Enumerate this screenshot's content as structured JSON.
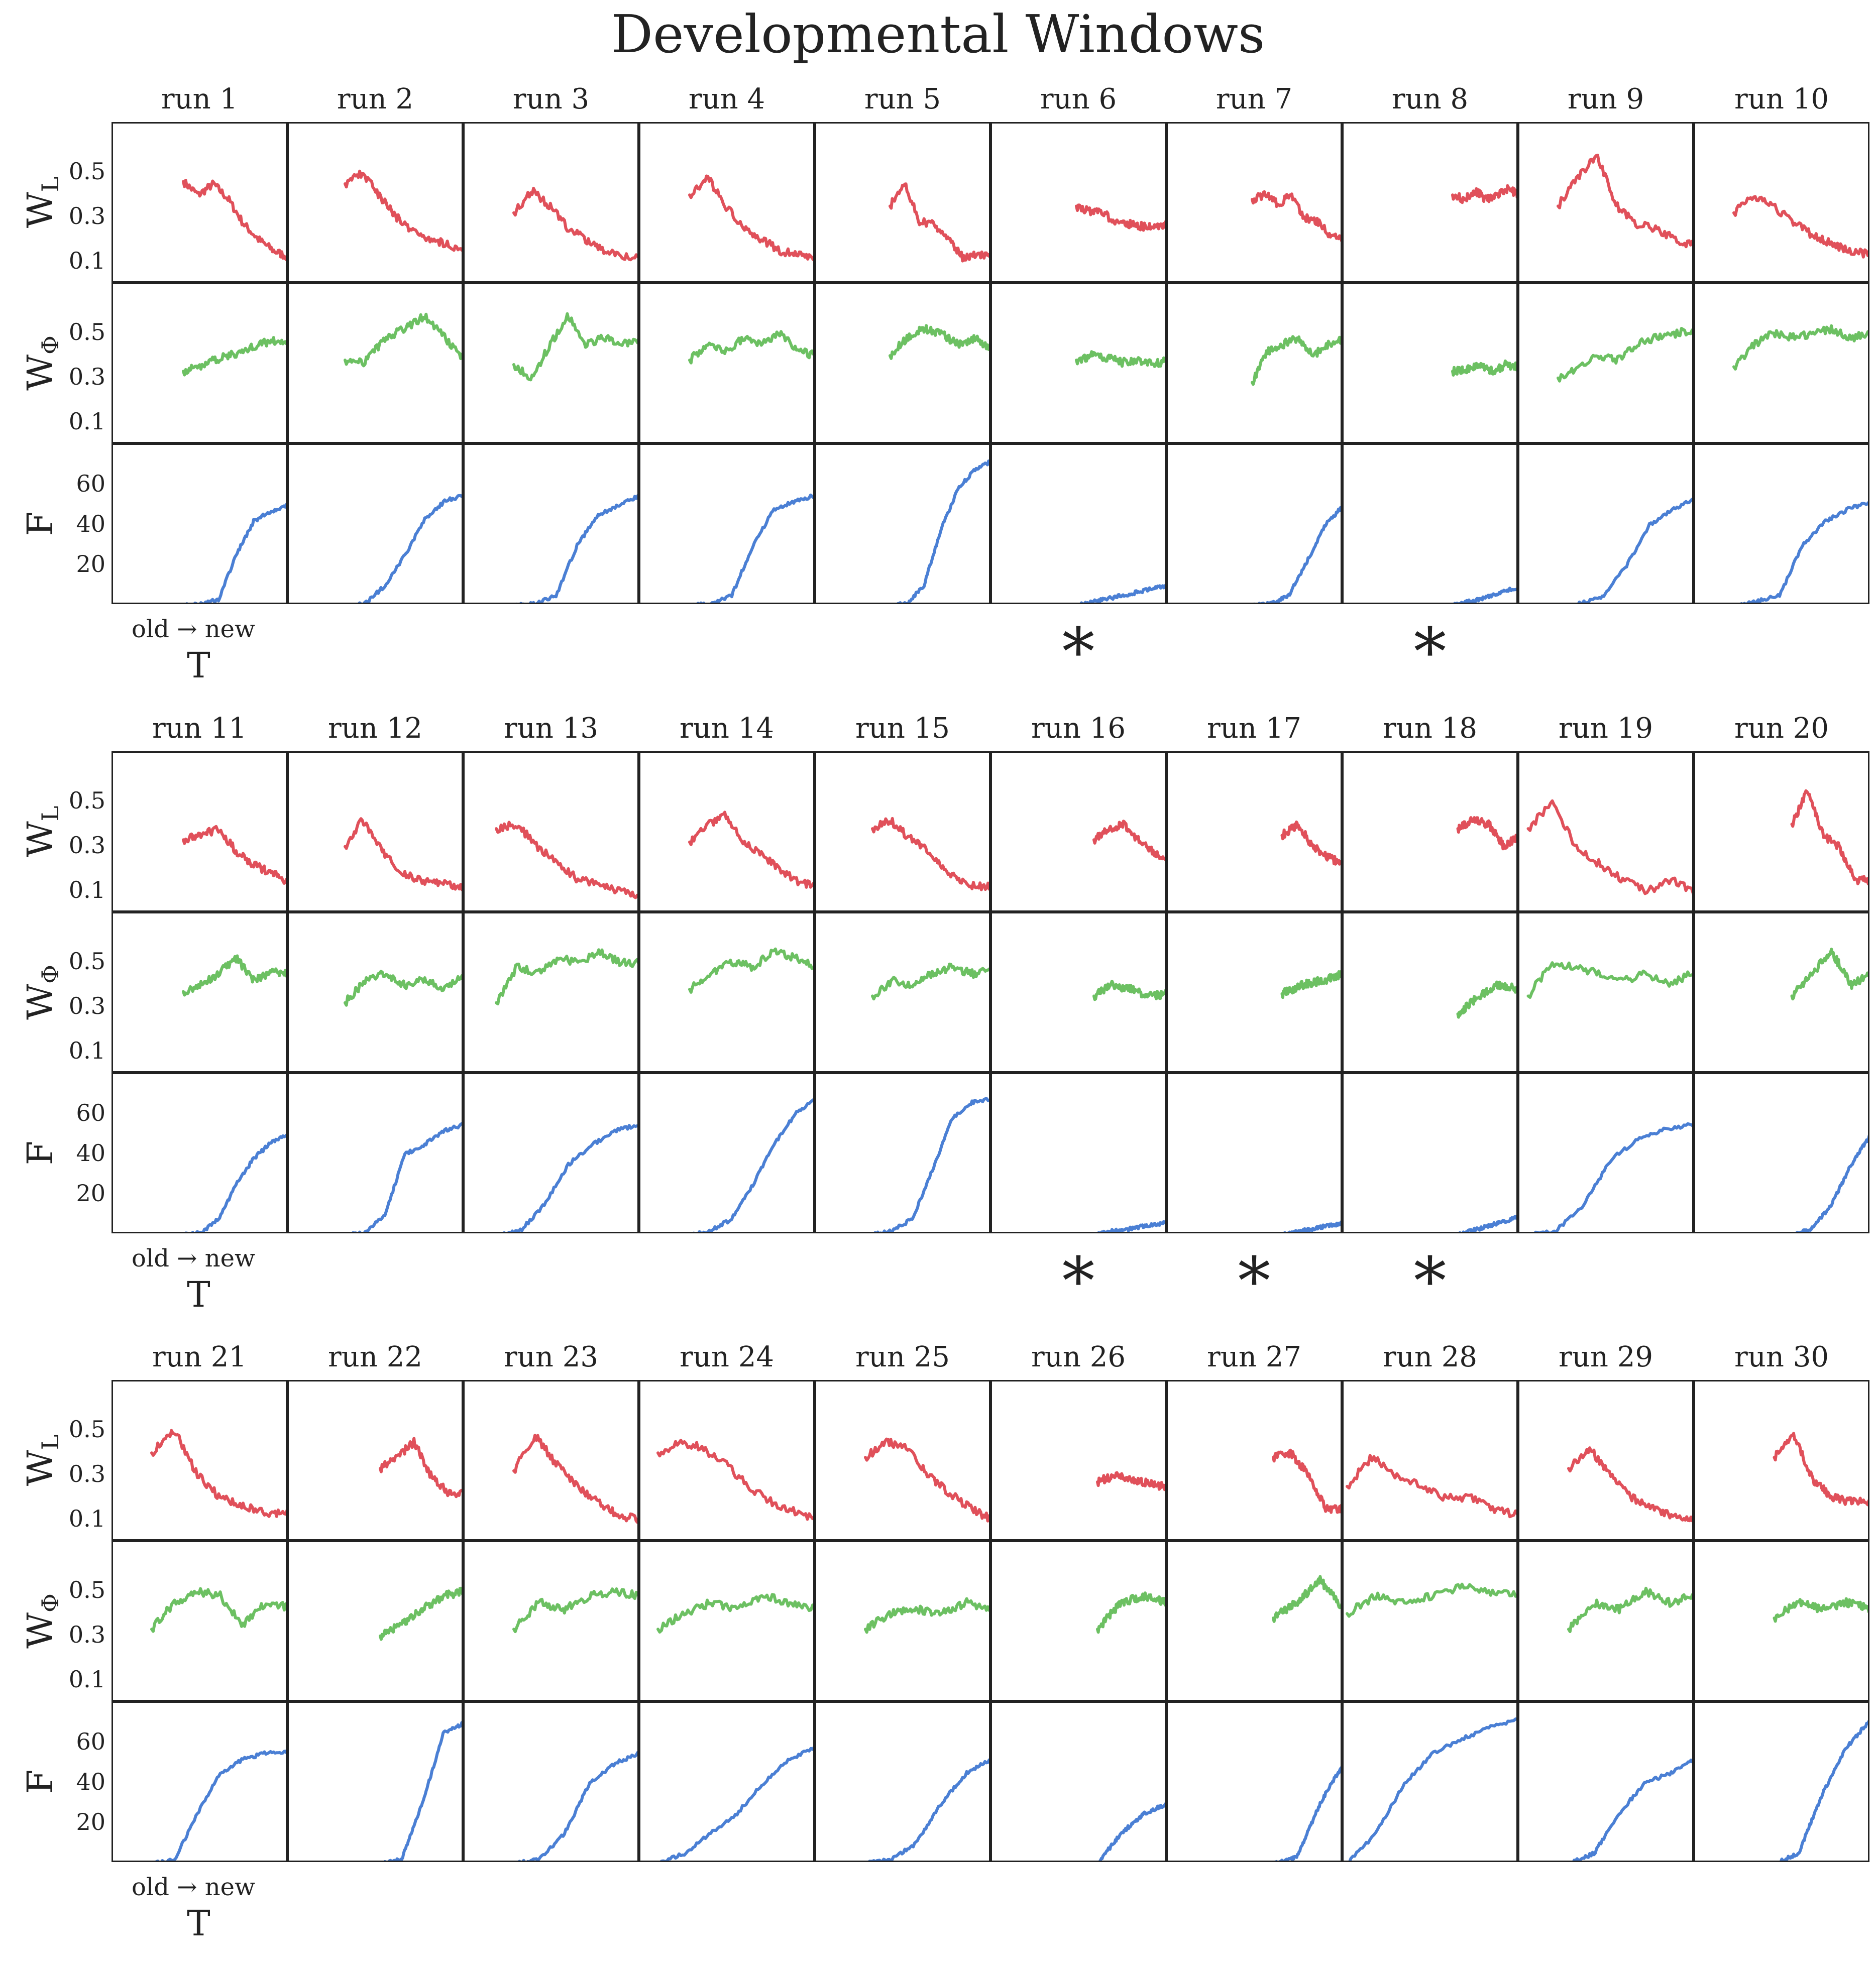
{
  "chart_data": {
    "type": "line",
    "title": "Developmental Windows",
    "x_axis": {
      "hint": "old → new",
      "label": "T"
    },
    "rows": [
      {
        "key": "WL",
        "label": "W",
        "sub": "L",
        "color": "#e0505a",
        "ylim": [
          0.0,
          0.72
        ],
        "yticks": [
          "0.5",
          "0.3",
          "0.1"
        ]
      },
      {
        "key": "WPhi",
        "label": "W",
        "sub": "Φ",
        "color": "#6cc062",
        "ylim": [
          0.0,
          0.72
        ],
        "yticks": [
          "0.5",
          "0.3",
          "0.1"
        ]
      },
      {
        "key": "F",
        "label": "F",
        "sub": "",
        "color": "#4a7fd4",
        "ylim": [
          0,
          80
        ],
        "yticks": [
          "60",
          "40",
          "20"
        ]
      }
    ],
    "runs": [
      {
        "name": "run 1",
        "starred": false,
        "WL": {
          "x0": 0.4,
          "y": [
            0.46,
            0.4,
            0.45,
            0.38,
            0.27,
            0.2,
            0.15,
            0.12
          ]
        },
        "WPhi": {
          "x0": 0.4,
          "y": [
            0.33,
            0.35,
            0.38,
            0.4,
            0.42,
            0.45,
            0.47,
            0.45
          ]
        },
        "F": {
          "x0": 0.4,
          "y": [
            0,
            1,
            3,
            25,
            42,
            47,
            50
          ]
        }
      },
      {
        "name": "run 2",
        "starred": false,
        "WL": {
          "x0": 0.32,
          "y": [
            0.45,
            0.5,
            0.4,
            0.3,
            0.24,
            0.2,
            0.18,
            0.15
          ]
        },
        "WPhi": {
          "x0": 0.32,
          "y": [
            0.38,
            0.37,
            0.48,
            0.52,
            0.58,
            0.48,
            0.38
          ]
        },
        "F": {
          "x0": 0.32,
          "y": [
            0,
            1,
            10,
            25,
            43,
            52,
            55
          ]
        }
      },
      {
        "name": "run 3",
        "starred": false,
        "WL": {
          "x0": 0.28,
          "y": [
            0.32,
            0.42,
            0.35,
            0.25,
            0.2,
            0.15,
            0.13,
            0.11
          ]
        },
        "WPhi": {
          "x0": 0.28,
          "y": [
            0.36,
            0.3,
            0.45,
            0.58,
            0.45,
            0.48,
            0.45,
            0.47
          ]
        },
        "F": {
          "x0": 0.28,
          "y": [
            0,
            1,
            5,
            30,
            45,
            50,
            55
          ]
        }
      },
      {
        "name": "run 4",
        "starred": false,
        "WL": {
          "x0": 0.28,
          "y": [
            0.4,
            0.48,
            0.35,
            0.25,
            0.2,
            0.15,
            0.13,
            0.12
          ]
        },
        "WPhi": {
          "x0": 0.28,
          "y": [
            0.38,
            0.45,
            0.42,
            0.48,
            0.45,
            0.5,
            0.42,
            0.4
          ]
        },
        "F": {
          "x0": 0.28,
          "y": [
            0,
            1,
            5,
            30,
            48,
            52,
            55
          ]
        }
      },
      {
        "name": "run 5",
        "starred": false,
        "WL": {
          "x0": 0.42,
          "y": [
            0.35,
            0.46,
            0.28,
            0.27,
            0.2,
            0.12,
            0.13,
            0.12
          ]
        },
        "WPhi": {
          "x0": 0.42,
          "y": [
            0.4,
            0.48,
            0.52,
            0.5,
            0.45,
            0.48,
            0.42
          ]
        },
        "F": {
          "x0": 0.42,
          "y": [
            0,
            1,
            10,
            38,
            58,
            68,
            72
          ]
        }
      },
      {
        "name": "run 6",
        "starred": true,
        "WL": {
          "x0": 0.48,
          "y": [
            0.35,
            0.33,
            0.32,
            0.28,
            0.27,
            0.26,
            0.25,
            0.27
          ]
        },
        "WPhi": {
          "x0": 0.48,
          "y": [
            0.38,
            0.4,
            0.39,
            0.37,
            0.38,
            0.36,
            0.38
          ]
        },
        "F": {
          "x0": 0.48,
          "y": [
            0,
            2,
            4,
            6,
            8,
            10
          ]
        }
      },
      {
        "name": "run 7",
        "starred": false,
        "WL": {
          "x0": 0.48,
          "y": [
            0.38,
            0.4,
            0.36,
            0.4,
            0.3,
            0.28,
            0.22,
            0.2
          ]
        },
        "WPhi": {
          "x0": 0.48,
          "y": [
            0.28,
            0.42,
            0.45,
            0.48,
            0.4,
            0.45,
            0.47
          ]
        },
        "F": {
          "x0": 0.48,
          "y": [
            0,
            1,
            5,
            22,
            40,
            50
          ]
        }
      },
      {
        "name": "run 8",
        "starred": true,
        "WL": {
          "x0": 0.62,
          "y": [
            0.4,
            0.38,
            0.42,
            0.38,
            0.4,
            0.43,
            0.4
          ]
        },
        "WPhi": {
          "x0": 0.62,
          "y": [
            0.33,
            0.34,
            0.36,
            0.33,
            0.36,
            0.35
          ]
        },
        "F": {
          "x0": 0.62,
          "y": [
            0,
            2,
            4,
            7,
            9
          ]
        }
      },
      {
        "name": "run 9",
        "starred": false,
        "WL": {
          "x0": 0.22,
          "y": [
            0.35,
            0.48,
            0.58,
            0.35,
            0.27,
            0.25,
            0.2,
            0.17
          ]
        },
        "WPhi": {
          "x0": 0.22,
          "y": [
            0.3,
            0.35,
            0.4,
            0.38,
            0.45,
            0.48,
            0.5,
            0.52
          ]
        },
        "F": {
          "x0": 0.22,
          "y": [
            0,
            1,
            5,
            20,
            40,
            48,
            53
          ]
        }
      },
      {
        "name": "run 10",
        "starred": false,
        "WL": {
          "x0": 0.22,
          "y": [
            0.32,
            0.4,
            0.35,
            0.28,
            0.22,
            0.18,
            0.15,
            0.13
          ]
        },
        "WPhi": {
          "x0": 0.22,
          "y": [
            0.35,
            0.45,
            0.5,
            0.48,
            0.5,
            0.52,
            0.48,
            0.5
          ]
        },
        "F": {
          "x0": 0.22,
          "y": [
            0,
            2,
            5,
            30,
            42,
            48,
            52
          ]
        }
      },
      {
        "name": "run 11",
        "starred": false,
        "WL": {
          "x0": 0.4,
          "y": [
            0.33,
            0.35,
            0.38,
            0.28,
            0.22,
            0.18,
            0.14
          ]
        },
        "WPhi": {
          "x0": 0.4,
          "y": [
            0.37,
            0.4,
            0.45,
            0.52,
            0.42,
            0.46,
            0.45
          ]
        },
        "F": {
          "x0": 0.4,
          "y": [
            0,
            1,
            8,
            25,
            38,
            46,
            50
          ]
        }
      },
      {
        "name": "run 12",
        "starred": false,
        "WL": {
          "x0": 0.32,
          "y": [
            0.3,
            0.42,
            0.3,
            0.2,
            0.16,
            0.14,
            0.13,
            0.12
          ]
        },
        "WPhi": {
          "x0": 0.32,
          "y": [
            0.32,
            0.42,
            0.45,
            0.4,
            0.42,
            0.38,
            0.45
          ]
        },
        "F": {
          "x0": 0.32,
          "y": [
            0,
            1,
            10,
            40,
            45,
            52,
            55
          ]
        }
      },
      {
        "name": "run 13",
        "starred": false,
        "WL": {
          "x0": 0.18,
          "y": [
            0.38,
            0.4,
            0.3,
            0.22,
            0.15,
            0.13,
            0.1,
            0.08
          ]
        },
        "WPhi": {
          "x0": 0.18,
          "y": [
            0.32,
            0.48,
            0.45,
            0.52,
            0.5,
            0.55,
            0.5,
            0.5
          ]
        },
        "F": {
          "x0": 0.18,
          "y": [
            0,
            2,
            15,
            35,
            45,
            52,
            55
          ]
        }
      },
      {
        "name": "run 14",
        "starred": false,
        "WL": {
          "x0": 0.28,
          "y": [
            0.32,
            0.4,
            0.44,
            0.32,
            0.26,
            0.2,
            0.14,
            0.12
          ]
        },
        "WPhi": {
          "x0": 0.28,
          "y": [
            0.38,
            0.45,
            0.5,
            0.48,
            0.55,
            0.52,
            0.48
          ]
        },
        "F": {
          "x0": 0.28,
          "y": [
            0,
            2,
            8,
            25,
            45,
            60,
            68
          ]
        }
      },
      {
        "name": "run 15",
        "starred": false,
        "WL": {
          "x0": 0.32,
          "y": [
            0.38,
            0.42,
            0.35,
            0.3,
            0.22,
            0.15,
            0.12,
            0.12
          ]
        },
        "WPhi": {
          "x0": 0.32,
          "y": [
            0.35,
            0.42,
            0.4,
            0.45,
            0.48,
            0.45,
            0.47
          ]
        },
        "F": {
          "x0": 0.32,
          "y": [
            0,
            2,
            8,
            32,
            58,
            66,
            68
          ]
        }
      },
      {
        "name": "run 16",
        "starred": true,
        "WL": {
          "x0": 0.58,
          "y": [
            0.33,
            0.38,
            0.4,
            0.33,
            0.28,
            0.24
          ]
        },
        "WPhi": {
          "x0": 0.58,
          "y": [
            0.35,
            0.4,
            0.38,
            0.35,
            0.36
          ]
        },
        "F": {
          "x0": 0.58,
          "y": [
            0,
            2,
            3,
            5,
            6
          ]
        }
      },
      {
        "name": "run 17",
        "starred": true,
        "WL": {
          "x0": 0.65,
          "y": [
            0.35,
            0.4,
            0.3,
            0.25,
            0.22
          ]
        },
        "WPhi": {
          "x0": 0.65,
          "y": [
            0.36,
            0.4,
            0.42,
            0.45
          ]
        },
        "F": {
          "x0": 0.65,
          "y": [
            0,
            2,
            4,
            6
          ]
        }
      },
      {
        "name": "run 18",
        "starred": true,
        "WL": {
          "x0": 0.65,
          "y": [
            0.38,
            0.42,
            0.4,
            0.3,
            0.35
          ]
        },
        "WPhi": {
          "x0": 0.65,
          "y": [
            0.27,
            0.35,
            0.4,
            0.38
          ]
        },
        "F": {
          "x0": 0.65,
          "y": [
            0,
            3,
            6,
            9
          ]
        }
      },
      {
        "name": "run 19",
        "starred": false,
        "WL": {
          "x0": 0.05,
          "y": [
            0.38,
            0.5,
            0.3,
            0.22,
            0.15,
            0.1,
            0.15,
            0.1
          ]
        },
        "WPhi": {
          "x0": 0.05,
          "y": [
            0.35,
            0.5,
            0.48,
            0.45,
            0.42,
            0.45,
            0.4,
            0.47
          ]
        },
        "F": {
          "x0": 0.05,
          "y": [
            0,
            2,
            15,
            38,
            48,
            53,
            55
          ]
        }
      },
      {
        "name": "run 20",
        "starred": false,
        "WL": {
          "x0": 0.55,
          "y": [
            0.4,
            0.55,
            0.35,
            0.3,
            0.15,
            0.15
          ]
        },
        "WPhi": {
          "x0": 0.55,
          "y": [
            0.35,
            0.45,
            0.55,
            0.4,
            0.45
          ]
        },
        "F": {
          "x0": 0.55,
          "y": [
            0,
            3,
            15,
            35,
            50
          ]
        }
      },
      {
        "name": "run 21",
        "starred": false,
        "WL": {
          "x0": 0.22,
          "y": [
            0.4,
            0.5,
            0.3,
            0.2,
            0.16,
            0.13,
            0.13
          ]
        },
        "WPhi": {
          "x0": 0.22,
          "y": [
            0.33,
            0.45,
            0.5,
            0.48,
            0.35,
            0.45,
            0.43
          ]
        },
        "F": {
          "x0": 0.22,
          "y": [
            0,
            2,
            25,
            45,
            52,
            55,
            56
          ]
        }
      },
      {
        "name": "run 22",
        "starred": false,
        "WL": {
          "x0": 0.52,
          "y": [
            0.33,
            0.38,
            0.45,
            0.3,
            0.22,
            0.22
          ]
        },
        "WPhi": {
          "x0": 0.52,
          "y": [
            0.3,
            0.35,
            0.42,
            0.48,
            0.5
          ]
        },
        "F": {
          "x0": 0.52,
          "y": [
            0,
            2,
            30,
            65,
            70
          ]
        }
      },
      {
        "name": "run 23",
        "starred": false,
        "WL": {
          "x0": 0.28,
          "y": [
            0.32,
            0.48,
            0.35,
            0.25,
            0.18,
            0.12,
            0.1
          ]
        },
        "WPhi": {
          "x0": 0.28,
          "y": [
            0.33,
            0.45,
            0.42,
            0.48,
            0.5,
            0.48
          ]
        },
        "F": {
          "x0": 0.28,
          "y": [
            0,
            2,
            15,
            40,
            50,
            55
          ]
        }
      },
      {
        "name": "run 24",
        "starred": false,
        "WL": {
          "x0": 0.1,
          "y": [
            0.4,
            0.45,
            0.42,
            0.35,
            0.25,
            0.18,
            0.14,
            0.1
          ]
        },
        "WPhi": {
          "x0": 0.1,
          "y": [
            0.33,
            0.4,
            0.45,
            0.42,
            0.48,
            0.45,
            0.42
          ]
        },
        "F": {
          "x0": 0.1,
          "y": [
            0,
            5,
            15,
            25,
            40,
            52,
            58
          ]
        }
      },
      {
        "name": "run 25",
        "starred": false,
        "WL": {
          "x0": 0.28,
          "y": [
            0.38,
            0.45,
            0.42,
            0.3,
            0.22,
            0.15,
            0.1
          ]
        },
        "WPhi": {
          "x0": 0.28,
          "y": [
            0.33,
            0.4,
            0.42,
            0.4,
            0.45,
            0.42
          ]
        },
        "F": {
          "x0": 0.28,
          "y": [
            0,
            2,
            10,
            30,
            45,
            52
          ]
        }
      },
      {
        "name": "run 26",
        "starred": false,
        "WL": {
          "x0": 0.6,
          "y": [
            0.27,
            0.3,
            0.28,
            0.26,
            0.25
          ]
        },
        "WPhi": {
          "x0": 0.6,
          "y": [
            0.33,
            0.45,
            0.48,
            0.45
          ]
        },
        "F": {
          "x0": 0.6,
          "y": [
            0,
            15,
            25,
            30
          ]
        }
      },
      {
        "name": "run 27",
        "starred": false,
        "WL": {
          "x0": 0.6,
          "y": [
            0.38,
            0.4,
            0.3,
            0.15,
            0.15
          ]
        },
        "WPhi": {
          "x0": 0.6,
          "y": [
            0.38,
            0.45,
            0.55,
            0.42
          ]
        },
        "F": {
          "x0": 0.6,
          "y": [
            0,
            3,
            30,
            50
          ]
        }
      },
      {
        "name": "run 28",
        "starred": false,
        "WL": {
          "x0": 0.02,
          "y": [
            0.25,
            0.38,
            0.3,
            0.25,
            0.2,
            0.2,
            0.15,
            0.12
          ]
        },
        "WPhi": {
          "x0": 0.02,
          "y": [
            0.4,
            0.48,
            0.45,
            0.48,
            0.52,
            0.5,
            0.48
          ]
        },
        "F": {
          "x0": 0.02,
          "y": [
            0,
            15,
            40,
            55,
            62,
            68,
            72
          ]
        }
      },
      {
        "name": "run 29",
        "starred": false,
        "WL": {
          "x0": 0.28,
          "y": [
            0.33,
            0.42,
            0.3,
            0.2,
            0.15,
            0.12,
            0.1
          ]
        },
        "WPhi": {
          "x0": 0.28,
          "y": [
            0.33,
            0.45,
            0.42,
            0.5,
            0.45,
            0.48
          ]
        },
        "F": {
          "x0": 0.28,
          "y": [
            0,
            5,
            25,
            40,
            45,
            52
          ]
        }
      },
      {
        "name": "run 30",
        "starred": false,
        "WL": {
          "x0": 0.45,
          "y": [
            0.38,
            0.48,
            0.28,
            0.2,
            0.18,
            0.18
          ]
        },
        "WPhi": {
          "x0": 0.45,
          "y": [
            0.38,
            0.45,
            0.42,
            0.45,
            0.42
          ]
        },
        "F": {
          "x0": 0.45,
          "y": [
            0,
            5,
            35,
            58,
            72
          ]
        }
      }
    ]
  }
}
